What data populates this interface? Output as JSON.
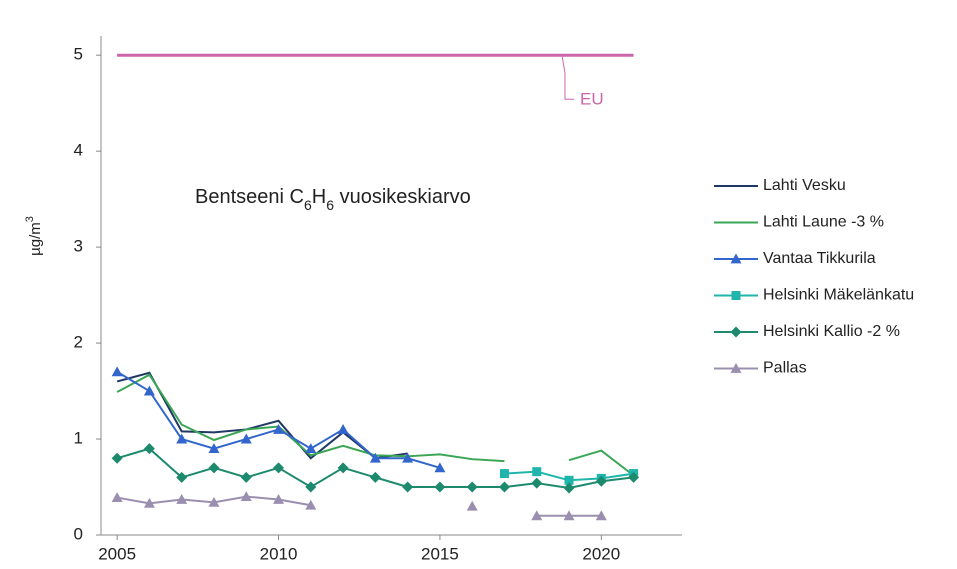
{
  "chart_data": {
    "type": "line",
    "title": [
      "Bentseeni C",
      "6",
      "H",
      "6",
      " vuosikeskiarvo"
    ],
    "ylabel": [
      "µg/m",
      "3"
    ],
    "x": [
      2005,
      2006,
      2007,
      2008,
      2009,
      2010,
      2011,
      2012,
      2013,
      2014,
      2015,
      2016,
      2017,
      2018,
      2019,
      2020,
      2021
    ],
    "xlim": [
      2004.5,
      2022.5
    ],
    "xticks": [
      2005,
      2010,
      2015,
      2020
    ],
    "ylim": [
      0,
      5.2
    ],
    "yticks": [
      0,
      1,
      2,
      3,
      4,
      5
    ],
    "grid": false,
    "legend": "right",
    "reference_line": {
      "name": "EU",
      "value": 5,
      "color": "#cc66aa"
    },
    "series": [
      {
        "name": "Lahti Vesku",
        "color": "#1f3864",
        "marker": null,
        "values": [
          1.6,
          1.69,
          1.08,
          1.07,
          1.1,
          1.19,
          0.8,
          1.07,
          0.8,
          0.85,
          null,
          null,
          null,
          null,
          null,
          null,
          null
        ]
      },
      {
        "name": "Lahti Laune -3 %",
        "color": "#3aa655",
        "marker": null,
        "values": [
          1.49,
          1.67,
          1.15,
          0.99,
          1.1,
          1.13,
          0.83,
          0.93,
          0.83,
          0.82,
          0.84,
          0.79,
          0.77,
          null,
          0.78,
          0.88,
          0.62
        ]
      },
      {
        "name": "Vantaa Tikkurila",
        "color": "#3366cc",
        "marker": "triangle",
        "values": [
          1.7,
          1.5,
          1.0,
          0.9,
          1.0,
          1.1,
          0.9,
          1.1,
          0.8,
          0.8,
          0.7,
          null,
          null,
          null,
          null,
          null,
          null
        ]
      },
      {
        "name": "Helsinki Mäkelänkatu",
        "color": "#1fb5ad",
        "marker": "square",
        "values": [
          null,
          null,
          null,
          null,
          null,
          null,
          null,
          null,
          null,
          null,
          null,
          null,
          0.64,
          0.66,
          0.57,
          0.59,
          0.64
        ]
      },
      {
        "name": "Helsinki Kallio -2 %",
        "color": "#1d8a6e",
        "marker": "diamond",
        "values": [
          0.8,
          0.9,
          0.6,
          0.7,
          0.6,
          0.7,
          0.5,
          0.7,
          0.6,
          0.5,
          0.5,
          0.5,
          0.5,
          0.54,
          0.49,
          0.56,
          0.6
        ]
      },
      {
        "name": "Pallas",
        "color": "#9b8fb0",
        "marker": "triangle",
        "values": [
          0.39,
          0.33,
          0.37,
          0.34,
          0.4,
          0.37,
          0.31,
          null,
          null,
          null,
          null,
          0.3,
          null,
          0.2,
          0.2,
          0.2,
          null
        ]
      }
    ]
  }
}
